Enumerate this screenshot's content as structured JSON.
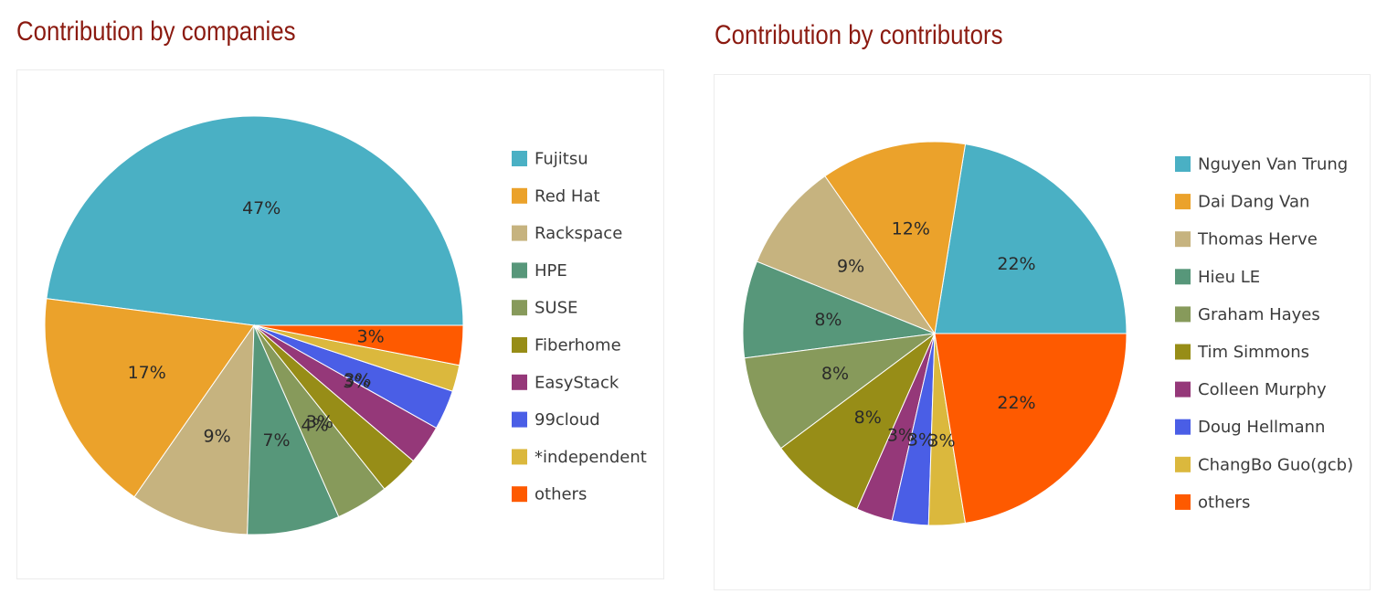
{
  "chart_data": [
    {
      "type": "pie",
      "title": "Contribution by companies",
      "legend_position": "right",
      "slices": [
        {
          "label": "Fujitsu",
          "value": 47,
          "display": "47%",
          "color": "#4ab0c4"
        },
        {
          "label": "Red Hat",
          "value": 17,
          "display": "17%",
          "color": "#eba22b"
        },
        {
          "label": "Rackspace",
          "value": 9,
          "display": "9%",
          "color": "#c6b37f"
        },
        {
          "label": "HPE",
          "value": 7,
          "display": "7%",
          "color": "#57977a"
        },
        {
          "label": "SUSE",
          "value": 4,
          "display": "4%",
          "color": "#879a5b"
        },
        {
          "label": "Fiberhome",
          "value": 3,
          "display": "3%",
          "color": "#978d17"
        },
        {
          "label": "EasyStack",
          "value": 3,
          "display": "3%",
          "color": "#953879"
        },
        {
          "label": "99cloud",
          "value": 3,
          "display": "3%",
          "color": "#4a5ee6"
        },
        {
          "label": "*independent",
          "value": 2,
          "display": "",
          "color": "#dbb83d"
        },
        {
          "label": "others",
          "value": 3,
          "display": "3%",
          "color": "#fe5a00"
        }
      ]
    },
    {
      "type": "pie",
      "title": "Contribution by contributors",
      "legend_position": "right",
      "slices": [
        {
          "label": "Nguyen Van Trung",
          "value": 22,
          "display": "22%",
          "color": "#4ab0c4"
        },
        {
          "label": "Dai Dang Van",
          "value": 12,
          "display": "12%",
          "color": "#eba22b"
        },
        {
          "label": "Thomas Herve",
          "value": 9,
          "display": "9%",
          "color": "#c6b37f"
        },
        {
          "label": "Hieu LE",
          "value": 8,
          "display": "8%",
          "color": "#57977a"
        },
        {
          "label": "Graham Hayes",
          "value": 8,
          "display": "8%",
          "color": "#879a5b"
        },
        {
          "label": "Tim Simmons",
          "value": 8,
          "display": "8%",
          "color": "#978d17"
        },
        {
          "label": "Colleen Murphy",
          "value": 3,
          "display": "3%",
          "color": "#953879"
        },
        {
          "label": "Doug Hellmann",
          "value": 3,
          "display": "3%",
          "color": "#4a5ee6"
        },
        {
          "label": "ChangBo Guo(gcb)",
          "value": 3,
          "display": "3%",
          "color": "#dbb83d"
        },
        {
          "label": "others",
          "value": 22,
          "display": "22%",
          "color": "#fe5a00"
        }
      ]
    }
  ]
}
